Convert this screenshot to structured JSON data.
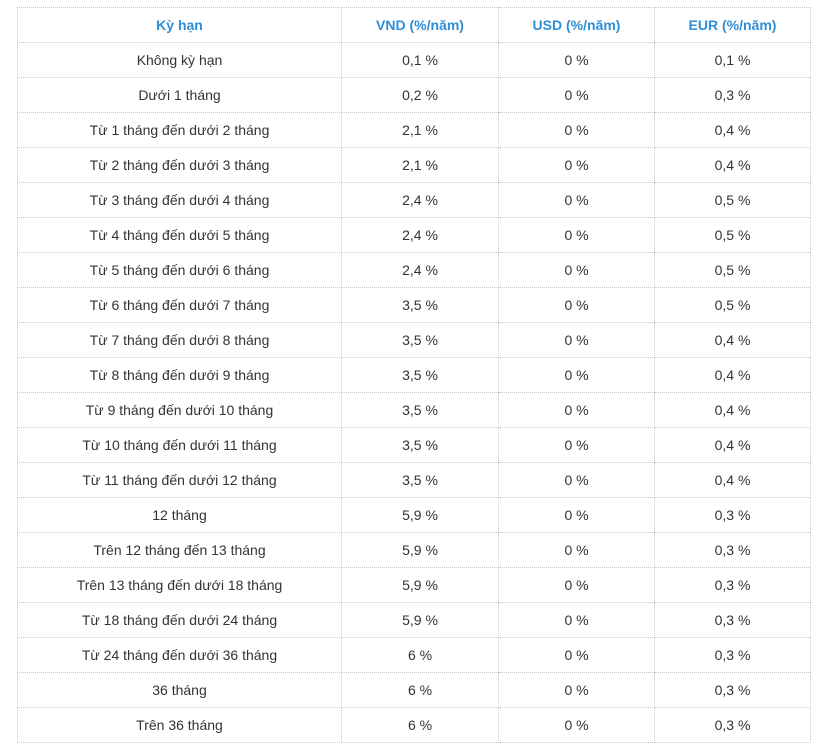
{
  "table": {
    "header": [
      "Kỳ hạn",
      "VND (%/năm)",
      "USD (%/năm)",
      "EUR (%/năm)"
    ],
    "rows": [
      [
        "Không kỳ hạn",
        "0,1 %",
        "0 %",
        "0,1 %"
      ],
      [
        "Dưới 1 tháng",
        "0,2 %",
        "0 %",
        "0,3 %"
      ],
      [
        "Từ 1 tháng đến dưới 2 tháng",
        "2,1 %",
        "0 %",
        "0,4 %"
      ],
      [
        "Từ 2 tháng đến dưới 3 tháng",
        "2,1 %",
        "0 %",
        "0,4 %"
      ],
      [
        "Từ 3 tháng đến dưới 4 tháng",
        "2,4 %",
        "0 %",
        "0,5 %"
      ],
      [
        "Từ 4 tháng đến dưới 5 tháng",
        "2,4 %",
        "0 %",
        "0,5 %"
      ],
      [
        "Từ 5 tháng đến dưới 6 tháng",
        "2,4 %",
        "0 %",
        "0,5 %"
      ],
      [
        "Từ 6 tháng đến dưới 7 tháng",
        "3,5 %",
        "0 %",
        "0,5 %"
      ],
      [
        "Từ 7 tháng đến dưới 8 tháng",
        "3,5 %",
        "0 %",
        "0,4 %"
      ],
      [
        "Từ 8 tháng đến dưới 9 tháng",
        "3,5 %",
        "0 %",
        "0,4 %"
      ],
      [
        "Từ 9 tháng đến dưới 10 tháng",
        "3,5 %",
        "0 %",
        "0,4 %"
      ],
      [
        "Từ 10 tháng đến dưới 11 tháng",
        "3,5 %",
        "0 %",
        "0,4 %"
      ],
      [
        "Từ 11 tháng đến dưới 12 tháng",
        "3,5 %",
        "0 %",
        "0,4 %"
      ],
      [
        "12 tháng",
        "5,9 %",
        "0 %",
        "0,3 %"
      ],
      [
        "Trên 12 tháng đến 13 tháng",
        "5,9 %",
        "0 %",
        "0,3 %"
      ],
      [
        "Trên 13 tháng đến dưới 18 tháng",
        "5,9 %",
        "0 %",
        "0,3 %"
      ],
      [
        "Từ 18 tháng đến dưới 24 tháng",
        "5,9 %",
        "0 %",
        "0,3 %"
      ],
      [
        "Từ 24 tháng đến dưới 36 tháng",
        "6 %",
        "0 %",
        "0,3 %"
      ],
      [
        "36 tháng",
        "6 %",
        "0 %",
        "0,3 %"
      ],
      [
        "Trên 36 tháng",
        "6 %",
        "0 %",
        "0,3 %"
      ]
    ]
  }
}
